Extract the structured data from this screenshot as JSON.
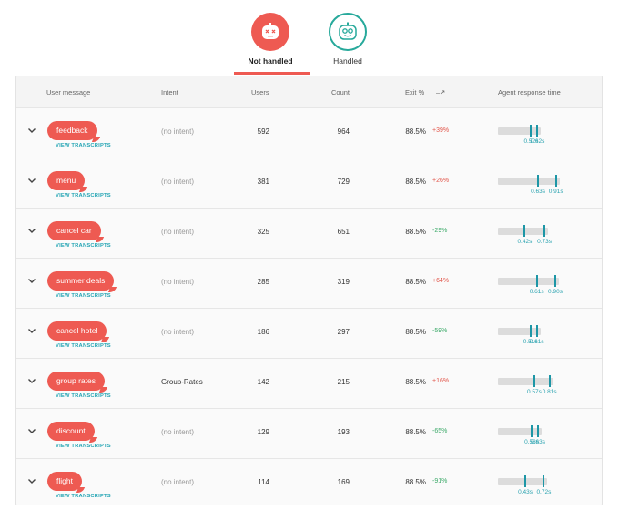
{
  "tabs": {
    "not_handled": {
      "label": "Not handled",
      "icon": "dead-bot-face-icon",
      "active": true
    },
    "handled": {
      "label": "Handled",
      "icon": "happy-bot-face-icon",
      "active": false
    }
  },
  "table": {
    "columns": {
      "user_message": "User message",
      "intent": "Intent",
      "users": "Users",
      "count": "Count",
      "exit": "Exit %",
      "trend": "–↗",
      "agent_response": "Agent response time"
    },
    "rows": [
      {
        "message": "feedback",
        "link": "VIEW TRANSCRIPTS",
        "intent": "(no intent)",
        "users": "592",
        "count": "964",
        "exit": "88.5%",
        "delta": "+39%",
        "delta_dir": "up",
        "art_low": "0.52s",
        "art_high": "0.62s",
        "art_low_frac": 0.52,
        "art_high_frac": 0.62
      },
      {
        "message": "menu",
        "link": "VIEW TRANSCRIPTS",
        "intent": "(no intent)",
        "users": "381",
        "count": "729",
        "exit": "88.5%",
        "delta": "+26%",
        "delta_dir": "up",
        "art_low": "0.63s",
        "art_high": "0.91s",
        "art_low_frac": 0.63,
        "art_high_frac": 0.91
      },
      {
        "message": "cancel car",
        "link": "VIEW TRANSCRIPTS",
        "intent": "(no intent)",
        "users": "325",
        "count": "651",
        "exit": "88.5%",
        "delta": "-29%",
        "delta_dir": "down",
        "art_low": "0.42s",
        "art_high": "0.73s",
        "art_low_frac": 0.42,
        "art_high_frac": 0.73
      },
      {
        "message": "summer deals",
        "link": "VIEW TRANSCRIPTS",
        "intent": "(no intent)",
        "users": "285",
        "count": "319",
        "exit": "88.5%",
        "delta": "+64%",
        "delta_dir": "up",
        "art_low": "0.61s",
        "art_high": "0.90s",
        "art_low_frac": 0.61,
        "art_high_frac": 0.9
      },
      {
        "message": "cancel hotel",
        "link": "VIEW TRANSCRIPTS",
        "intent": "(no intent)",
        "users": "186",
        "count": "297",
        "exit": "88.5%",
        "delta": "-59%",
        "delta_dir": "down",
        "art_low": "0.51s",
        "art_high": "0.61s",
        "art_low_frac": 0.51,
        "art_high_frac": 0.61
      },
      {
        "message": "group rates",
        "link": "VIEW TRANSCRIPTS",
        "intent": "Group-Rates",
        "users": "142",
        "count": "215",
        "exit": "88.5%",
        "delta": "+16%",
        "delta_dir": "up",
        "art_low": "0.57s",
        "art_high": "0.81s",
        "art_low_frac": 0.57,
        "art_high_frac": 0.81
      },
      {
        "message": "discount",
        "link": "VIEW TRANSCRIPTS",
        "intent": "(no intent)",
        "users": "129",
        "count": "193",
        "exit": "88.5%",
        "delta": "-65%",
        "delta_dir": "down",
        "art_low": "0.53s",
        "art_high": "0.63s",
        "art_low_frac": 0.53,
        "art_high_frac": 0.63
      },
      {
        "message": "flight",
        "link": "VIEW TRANSCRIPTS",
        "intent": "(no intent)",
        "users": "114",
        "count": "169",
        "exit": "88.5%",
        "delta": "-91%",
        "delta_dir": "down",
        "art_low": "0.43s",
        "art_high": "0.72s",
        "art_low_frac": 0.43,
        "art_high_frac": 0.72
      }
    ]
  },
  "colors": {
    "accent_red": "#ee5a52",
    "accent_teal": "#27a99b",
    "link_teal": "#26a6b5",
    "positive_delta": "#e2574c",
    "negative_delta": "#3daa6a"
  }
}
